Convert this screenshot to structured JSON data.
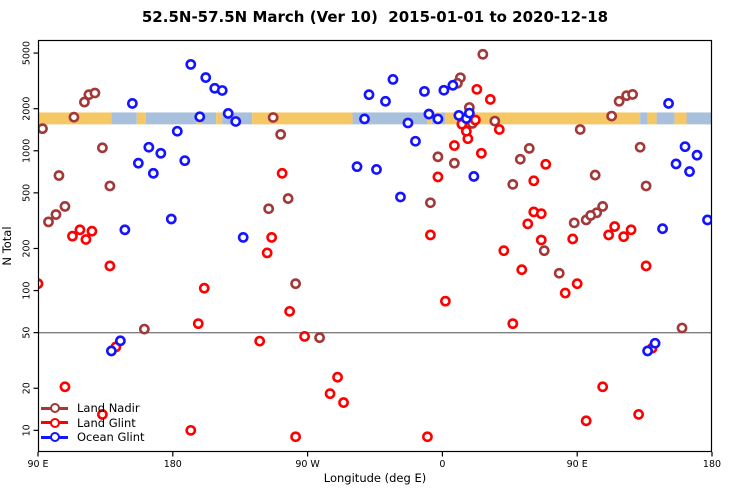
{
  "figure": {
    "title": "52.5N-57.5N March (Ver 10)  2015-01-01 to 2020-12-18"
  },
  "chart_data": {
    "type": "scatter",
    "title": "52.5N-57.5N March (Ver 10)  2015-01-01 to 2020-12-18",
    "xlabel": "Longitude (deg E)",
    "ylabel": "N Total",
    "x_scale": "linear (longitude wraps eastward from 90E)",
    "y_scale": "log10",
    "grid": "off",
    "legend_position": "bottom-left",
    "xlim": [
      90,
      540
    ],
    "ylim": [
      7,
      6200
    ],
    "x_ticks": [
      {
        "value": 90,
        "label": "90 E"
      },
      {
        "value": 180,
        "label": "180"
      },
      {
        "value": 270,
        "label": "90 W"
      },
      {
        "value": 360,
        "label": "0"
      },
      {
        "value": 450,
        "label": "90 E"
      },
      {
        "value": 540,
        "label": "180"
      }
    ],
    "y_ticks": [
      {
        "value": 10,
        "label": "10"
      },
      {
        "value": 20,
        "label": "20"
      },
      {
        "value": 50,
        "label": "50"
      },
      {
        "value": 100,
        "label": "100"
      },
      {
        "value": 200,
        "label": "200"
      },
      {
        "value": 500,
        "label": "500"
      },
      {
        "value": 1000,
        "label": "1000"
      },
      {
        "value": 2000,
        "label": "2000"
      },
      {
        "value": 5000,
        "label": "5000"
      }
    ],
    "reference_line": {
      "y": 50,
      "color": "#7F7F7F"
    },
    "coast_band": {
      "description": "land/ocean strip across latitude band",
      "y_range": [
        1545,
        1880
      ],
      "land_color": "#F6C865",
      "ocean_color": "#A9C0DD",
      "segments": [
        {
          "from": 90,
          "to": 139,
          "type": "land"
        },
        {
          "from": 139,
          "to": 156,
          "type": "ocean"
        },
        {
          "from": 156,
          "to": 162,
          "type": "land"
        },
        {
          "from": 162,
          "to": 196,
          "type": "ocean"
        },
        {
          "from": 196,
          "to": 199,
          "type": "land"
        },
        {
          "from": 199,
          "to": 209,
          "type": "ocean"
        },
        {
          "from": 209,
          "to": 213,
          "type": "land"
        },
        {
          "from": 213,
          "to": 233,
          "type": "ocean"
        },
        {
          "from": 233,
          "to": 300,
          "type": "land"
        },
        {
          "from": 300,
          "to": 350,
          "type": "ocean"
        },
        {
          "from": 350,
          "to": 353,
          "type": "land"
        },
        {
          "from": 353,
          "to": 355,
          "type": "ocean"
        },
        {
          "from": 355,
          "to": 359,
          "type": "land"
        },
        {
          "from": 359,
          "to": 362,
          "type": "ocean"
        },
        {
          "from": 362,
          "to": 492,
          "type": "land"
        },
        {
          "from": 492,
          "to": 497,
          "type": "ocean"
        },
        {
          "from": 497,
          "to": 503,
          "type": "land"
        },
        {
          "from": 503,
          "to": 515,
          "type": "ocean"
        },
        {
          "from": 515,
          "to": 523,
          "type": "land"
        },
        {
          "from": 523,
          "to": 540,
          "type": "ocean"
        }
      ]
    },
    "series": [
      {
        "name": "Land Nadir",
        "color": "#A23838",
        "marker": "open-circle",
        "points": [
          [
            121,
            2230
          ],
          [
            124,
            2520
          ],
          [
            128,
            2590
          ],
          [
            114,
            1740
          ],
          [
            93,
            1440
          ],
          [
            133,
            1050
          ],
          [
            104,
            665
          ],
          [
            138,
            560
          ],
          [
            108,
            400
          ],
          [
            102,
            350
          ],
          [
            97,
            310
          ],
          [
            161,
            53
          ],
          [
            247,
            1730
          ],
          [
            252,
            1310
          ],
          [
            257,
            455
          ],
          [
            244,
            385
          ],
          [
            262,
            112
          ],
          [
            278,
            46
          ],
          [
            387,
            4900
          ],
          [
            372,
            3330
          ],
          [
            370,
            3040
          ],
          [
            378,
            2040
          ],
          [
            395,
            1630
          ],
          [
            380,
            1570
          ],
          [
            418,
            1040
          ],
          [
            412,
            870
          ],
          [
            357,
            905
          ],
          [
            368,
            815
          ],
          [
            407,
            575
          ],
          [
            352,
            425
          ],
          [
            428,
            193
          ],
          [
            478,
            2260
          ],
          [
            483,
            2480
          ],
          [
            487,
            2530
          ],
          [
            473,
            1770
          ],
          [
            452,
            1420
          ],
          [
            492,
            1060
          ],
          [
            462,
            670
          ],
          [
            496,
            560
          ],
          [
            467,
            400
          ],
          [
            463,
            360
          ],
          [
            448,
            305
          ],
          [
            456,
            320
          ],
          [
            459,
            345
          ],
          [
            438,
            133
          ],
          [
            520,
            54
          ]
        ]
      },
      {
        "name": "Land Glint",
        "color": "#FF0000",
        "marker": "open-circle",
        "points": [
          [
            118,
            272
          ],
          [
            113,
            245
          ],
          [
            122,
            232
          ],
          [
            126,
            266
          ],
          [
            138,
            150
          ],
          [
            90,
            112
          ],
          [
            108,
            20.5
          ],
          [
            133,
            13
          ],
          [
            142,
            39.5
          ],
          [
            192,
            10
          ],
          [
            253,
            690
          ],
          [
            246,
            240
          ],
          [
            243,
            186
          ],
          [
            201,
            104
          ],
          [
            258,
            71
          ],
          [
            197,
            58
          ],
          [
            268,
            47
          ],
          [
            238,
            43.5
          ],
          [
            290,
            24
          ],
          [
            285,
            18.3
          ],
          [
            294,
            15.8
          ],
          [
            262,
            9
          ],
          [
            383,
            2750
          ],
          [
            392,
            2330
          ],
          [
            373,
            1550
          ],
          [
            382,
            1660
          ],
          [
            398,
            1420
          ],
          [
            377,
            1220
          ],
          [
            368,
            1090
          ],
          [
            386,
            960
          ],
          [
            376,
            1380
          ],
          [
            357,
            650
          ],
          [
            429,
            800
          ],
          [
            421,
            610
          ],
          [
            421,
            365
          ],
          [
            426,
            355
          ],
          [
            417,
            300
          ],
          [
            352,
            250
          ],
          [
            401,
            193
          ],
          [
            426,
            230
          ],
          [
            413,
            141
          ],
          [
            362,
            84
          ],
          [
            407,
            58
          ],
          [
            350,
            9
          ],
          [
            496,
            150
          ],
          [
            450,
            112
          ],
          [
            442,
            96
          ],
          [
            467,
            20.5
          ],
          [
            456,
            11.7
          ],
          [
            491,
            13
          ],
          [
            500,
            38.7
          ],
          [
            471,
            250
          ],
          [
            475,
            287
          ],
          [
            481,
            243
          ],
          [
            486,
            272
          ],
          [
            447,
            234
          ]
        ]
      },
      {
        "name": "Ocean Glint",
        "color": "#1414FF",
        "marker": "open-circle",
        "points": [
          [
            192,
            4150
          ],
          [
            202,
            3340
          ],
          [
            208,
            2800
          ],
          [
            213,
            2700
          ],
          [
            153,
            2180
          ],
          [
            198,
            1750
          ],
          [
            217,
            1850
          ],
          [
            222,
            1620
          ],
          [
            183,
            1380
          ],
          [
            164,
            1060
          ],
          [
            172,
            960
          ],
          [
            157,
            815
          ],
          [
            188,
            850
          ],
          [
            167,
            690
          ],
          [
            179,
            325
          ],
          [
            148,
            272
          ],
          [
            145,
            43.7
          ],
          [
            139,
            37
          ],
          [
            227,
            240
          ],
          [
            311,
            2520
          ],
          [
            308,
            1690
          ],
          [
            303,
            770
          ],
          [
            316,
            735
          ],
          [
            327,
            3240
          ],
          [
            348,
            2660
          ],
          [
            361,
            2710
          ],
          [
            367,
            2940
          ],
          [
            322,
            2260
          ],
          [
            351,
            1830
          ],
          [
            357,
            1690
          ],
          [
            337,
            1580
          ],
          [
            371,
            1790
          ],
          [
            376,
            1700
          ],
          [
            378,
            1860
          ],
          [
            342,
            1170
          ],
          [
            381,
            655
          ],
          [
            332,
            467
          ],
          [
            511,
            2180
          ],
          [
            522,
            1070
          ],
          [
            530,
            930
          ],
          [
            516,
            805
          ],
          [
            525,
            710
          ],
          [
            507,
            277
          ],
          [
            537,
            320
          ],
          [
            502,
            42
          ],
          [
            497,
            37
          ]
        ]
      }
    ]
  }
}
